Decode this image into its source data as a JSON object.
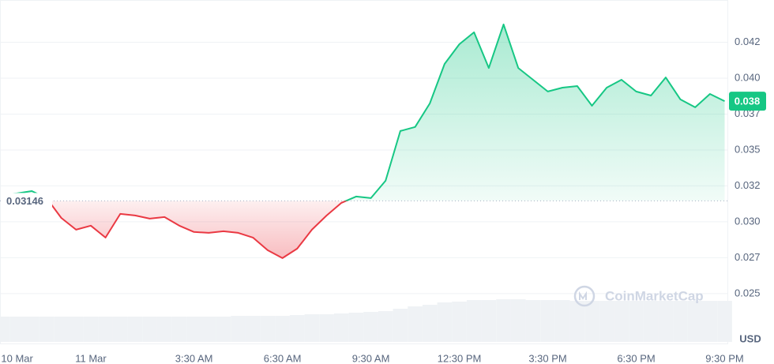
{
  "chart_data": {
    "type": "line",
    "x": [
      -3,
      -2.5,
      -2,
      -1.5,
      -1,
      -0.5,
      0,
      0.5,
      1,
      1.5,
      2,
      2.5,
      3,
      3.5,
      4,
      4.5,
      5,
      5.5,
      6,
      6.5,
      7,
      7.5,
      8,
      8.5,
      9,
      9.5,
      10,
      10.5,
      11,
      11.5,
      12,
      12.5,
      13,
      13.5,
      14,
      14.5,
      15,
      15.5,
      16,
      16.5,
      17,
      17.5,
      18,
      18.5,
      19,
      19.5,
      20,
      20.5,
      21,
      21.5
    ],
    "values": [
      0.03187,
      0.03198,
      0.03214,
      0.03165,
      0.03027,
      0.02945,
      0.02973,
      0.0289,
      0.03055,
      0.03044,
      0.03022,
      0.03033,
      0.02973,
      0.02929,
      0.02923,
      0.02934,
      0.02923,
      0.0289,
      0.02802,
      0.02747,
      0.02813,
      0.02945,
      0.03044,
      0.03132,
      0.03176,
      0.03165,
      0.03286,
      0.03632,
      0.0366,
      0.03824,
      0.04099,
      0.04236,
      0.04319,
      0.04071,
      0.04374,
      0.04071,
      0.03989,
      0.03907,
      0.03934,
      0.03945,
      0.03808,
      0.03934,
      0.03989,
      0.03907,
      0.03879,
      0.04005,
      0.03852,
      0.03797,
      0.0389,
      0.0384
    ],
    "volume": [
      32,
      32,
      32,
      32,
      32,
      32,
      32,
      32,
      32,
      32,
      32,
      32,
      32,
      32,
      32,
      32,
      33,
      33,
      33,
      33,
      34,
      35,
      35,
      36,
      37,
      38,
      39,
      42,
      45,
      47,
      50,
      51,
      53,
      53,
      54,
      54,
      53,
      53,
      53,
      52,
      52,
      52,
      52,
      52,
      52,
      52,
      52,
      52,
      52,
      52
    ],
    "volume_lim": [
      0,
      60
    ],
    "up_color": "#16c784",
    "down_color": "#ea3943",
    "baseline": 0.03146,
    "current": {
      "value": 0.0384,
      "label": "0.038"
    },
    "xlim": [
      -3.08,
      21.62
    ],
    "ylim": [
      0.0234,
      0.045
    ],
    "xticks": [
      {
        "value": -2.5,
        "label": "10 Mar"
      },
      {
        "value": 0,
        "label": "11 Mar"
      },
      {
        "value": 3.5,
        "label": "3:30 AM"
      },
      {
        "value": 6.5,
        "label": "6:30 AM"
      },
      {
        "value": 9.5,
        "label": "9:30 AM"
      },
      {
        "value": 12.5,
        "label": "12:30 PM"
      },
      {
        "value": 15.5,
        "label": "3:30 PM"
      },
      {
        "value": 18.5,
        "label": "6:30 PM"
      },
      {
        "value": 21.5,
        "label": "9:30 PM"
      }
    ],
    "yticks": [
      {
        "value": 0.0425,
        "label": "0.042"
      },
      {
        "value": 0.04,
        "label": "0.040"
      },
      {
        "value": 0.0375,
        "label": "0.037"
      },
      0.035,
      {
        "value": 0.0325,
        "label": "0.032"
      },
      {
        "value": 0.03,
        "label": "0.030"
      },
      {
        "value": 0.0275,
        "label": "0.027"
      },
      0.025
    ],
    "grid": true,
    "y_axis_label": "USD",
    "watermark": "CoinMarketCap"
  }
}
